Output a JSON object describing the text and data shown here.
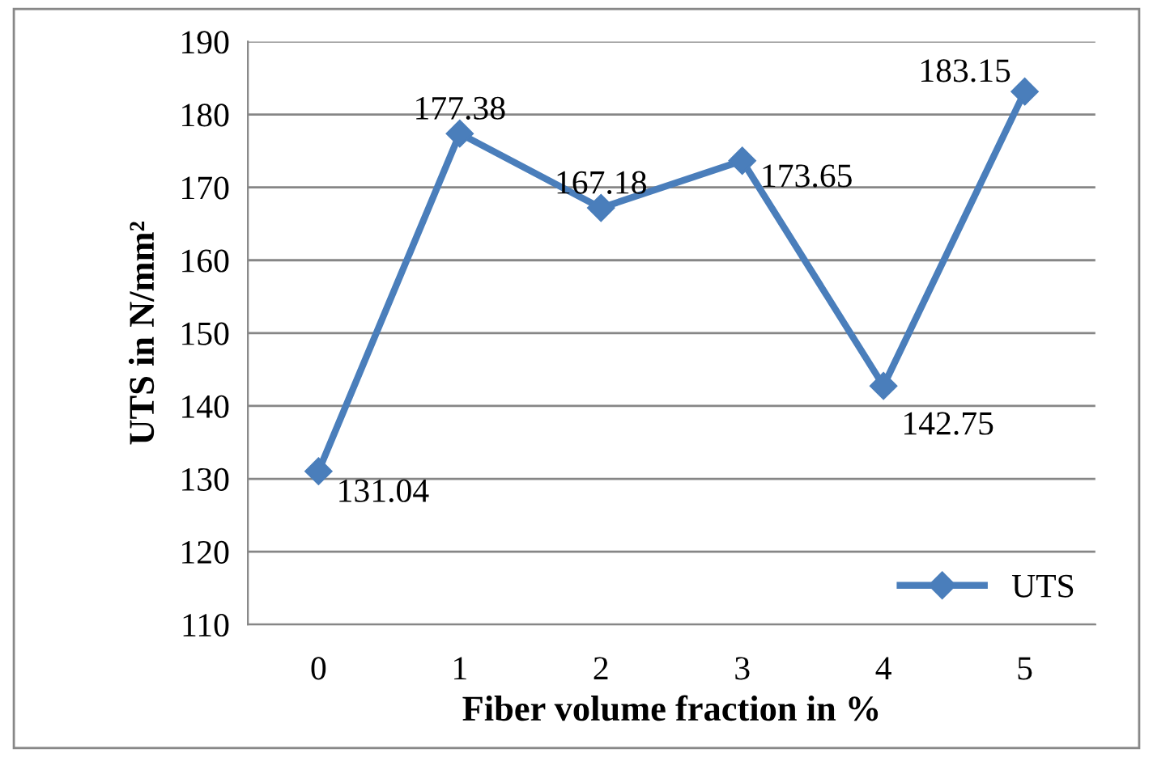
{
  "chart_data": {
    "type": "line",
    "xlabel": "Fiber volume fraction in %",
    "ylabel": "UTS in N/mm²",
    "categories": [
      "0",
      "1",
      "2",
      "3",
      "4",
      "5"
    ],
    "series": [
      {
        "name": "UTS",
        "color": "#4a7ebb",
        "values": [
          131.04,
          177.38,
          167.18,
          173.65,
          142.75,
          183.15
        ]
      }
    ],
    "ylim": [
      110,
      190
    ],
    "yticks": [
      110,
      120,
      130,
      140,
      150,
      160,
      170,
      180,
      190
    ],
    "grid": "y",
    "legend": "bottom right",
    "marker": "diamond",
    "line_style": "solid",
    "data_labels": true
  }
}
